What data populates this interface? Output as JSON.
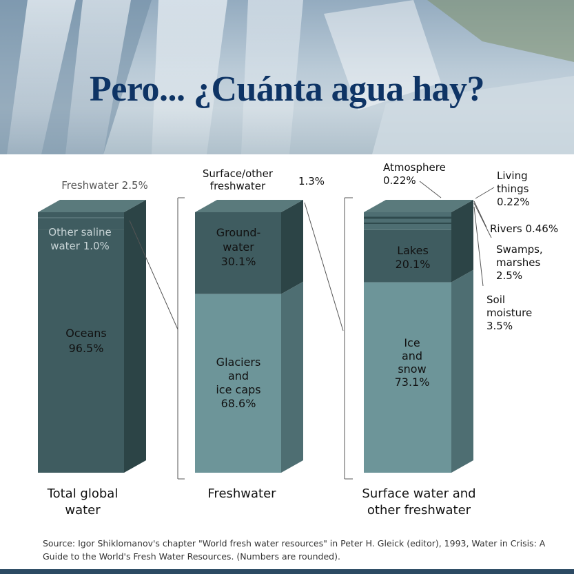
{
  "banner": {
    "title": "Pero... ¿Cuánta agua hay?"
  },
  "colors": {
    "title": "#0e3465",
    "dark_face": "#3f5c60",
    "mid_face": "#4e6e72",
    "light_face": "#6d9599",
    "side_dark": "#2c4446",
    "top_dark": "#5a7a7c"
  },
  "source_text": "Source: Igor Shiklomanov's chapter \"World fresh water resources\" in Peter H. Gleick (editor), 1993, Water in Crisis: A Guide to the World's Fresh Water Resources. (Numbers are rounded).",
  "chart_data": [
    {
      "type": "bar",
      "stacked": true,
      "category": [
        "Total global",
        "water"
      ],
      "segments": [
        {
          "name": [
            "Oceans",
            "96.5%"
          ],
          "value": 96.5
        },
        {
          "name": [
            "Other saline",
            "water 1.0%"
          ],
          "value": 1.0
        },
        {
          "name": [
            "Freshwater 2.5%"
          ],
          "value": 2.5
        }
      ]
    },
    {
      "type": "bar",
      "stacked": true,
      "category": [
        "Freshwater"
      ],
      "segments": [
        {
          "name": [
            "Glaciers",
            "and",
            "ice caps",
            "68.6%"
          ],
          "value": 68.6
        },
        {
          "name": [
            "Ground-",
            "water",
            "30.1%"
          ],
          "value": 30.1
        },
        {
          "name": [
            "Surface/other",
            "freshwater"
          ],
          "value_label": "1.3%",
          "value": 1.3
        }
      ]
    },
    {
      "type": "bar",
      "stacked": true,
      "category": [
        "Surface water and",
        "other freshwater"
      ],
      "segments": [
        {
          "name": [
            "Ice",
            "and",
            "snow",
            "73.1%"
          ],
          "value": 73.1
        },
        {
          "name": [
            "Lakes",
            "20.1%"
          ],
          "value": 20.1
        },
        {
          "name": [
            "Soil",
            "moisture",
            "3.5%"
          ],
          "value": 3.5
        },
        {
          "name": [
            "Swamps,",
            "marshes",
            "2.5%"
          ],
          "value": 2.5
        },
        {
          "name": [
            "Rivers 0.46%"
          ],
          "value": 0.46
        },
        {
          "name": [
            "Living",
            "things",
            "0.22%"
          ],
          "value": 0.22
        },
        {
          "name": [
            "Atmosphere",
            "0.22%"
          ],
          "value": 0.22
        }
      ]
    }
  ]
}
